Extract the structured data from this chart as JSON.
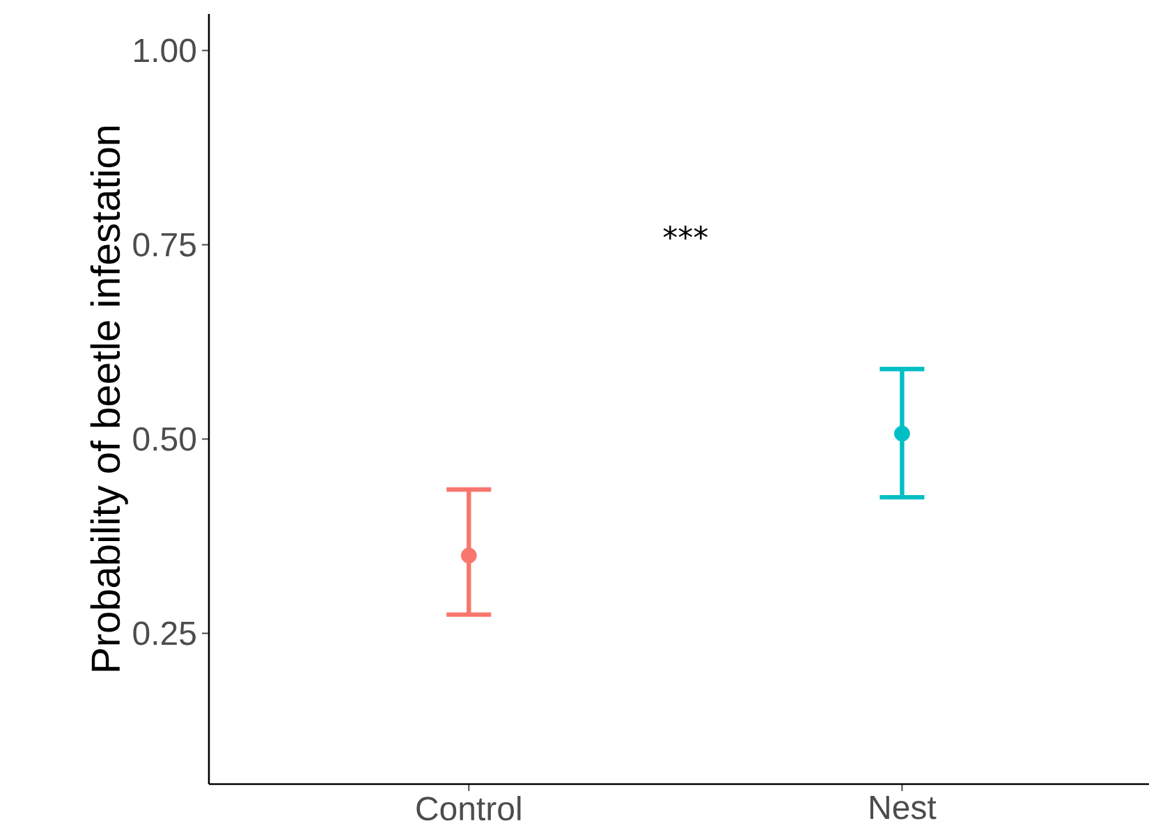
{
  "chart_data": {
    "type": "scatter",
    "ylabel": "Probability of beetle infestation",
    "categories": [
      "Control",
      "Nest"
    ],
    "values": [
      0.35,
      0.507
    ],
    "colors": [
      "#f8766d",
      "#00bfc4"
    ],
    "errors": [
      [
        0.274,
        0.435
      ],
      [
        0.425,
        0.59
      ]
    ],
    "ylim": [
      0.056,
      1.047
    ],
    "yticks": [
      {
        "value": 0.25,
        "label": "0.25"
      },
      {
        "value": 0.5,
        "label": "0.50"
      },
      {
        "value": 0.75,
        "label": "0.75"
      },
      {
        "value": 1.0,
        "label": "1.00"
      }
    ],
    "annotations": [
      "***"
    ]
  }
}
